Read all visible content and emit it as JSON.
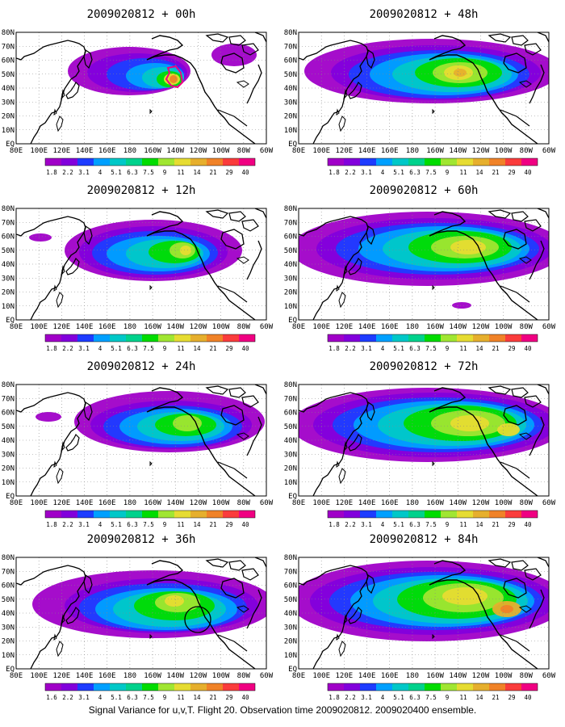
{
  "figure": {
    "caption": "Signal Variance for u,v,T. Flight 20. Observation time 2009020812. 2009020400 ensemble."
  },
  "axes": {
    "lat_labels": [
      "EQ",
      "10N",
      "20N",
      "30N",
      "40N",
      "50N",
      "60N",
      "70N",
      "80N"
    ],
    "lon_labels": [
      "80E",
      "100E",
      "120E",
      "140E",
      "160E",
      "180",
      "160W",
      "140W",
      "120W",
      "100W",
      "80W",
      "60W"
    ]
  },
  "colorbar": {
    "labels": [
      "1.8",
      "2.2",
      "3.1",
      "4",
      "5.1",
      "6.3",
      "7.5",
      "9",
      "11",
      "14",
      "21",
      "29",
      "40"
    ],
    "labels_panel_36h": [
      "1.6",
      "2.2",
      "3.1",
      "4",
      "5.1",
      "6.3",
      "7.5",
      "9",
      "11",
      "14",
      "21",
      "29",
      "40"
    ],
    "colors": [
      "#a000c8",
      "#8200dc",
      "#1e3cff",
      "#00a0ff",
      "#00c8c8",
      "#00d28c",
      "#00dc00",
      "#a0e632",
      "#e6dc32",
      "#e6af2d",
      "#f08228",
      "#fa3c3c",
      "#f00082"
    ]
  },
  "panels": [
    {
      "title": "2009020812 + 00h",
      "lead": "00h"
    },
    {
      "title": "2009020812 + 12h",
      "lead": "12h"
    },
    {
      "title": "2009020812 + 24h",
      "lead": "24h"
    },
    {
      "title": "2009020812 + 36h",
      "lead": "36h"
    },
    {
      "title": "2009020812 + 48h",
      "lead": "48h"
    },
    {
      "title": "2009020812 + 60h",
      "lead": "60h"
    },
    {
      "title": "2009020812 + 72h",
      "lead": "72h"
    },
    {
      "title": "2009020812 + 84h",
      "lead": "84h"
    }
  ]
}
